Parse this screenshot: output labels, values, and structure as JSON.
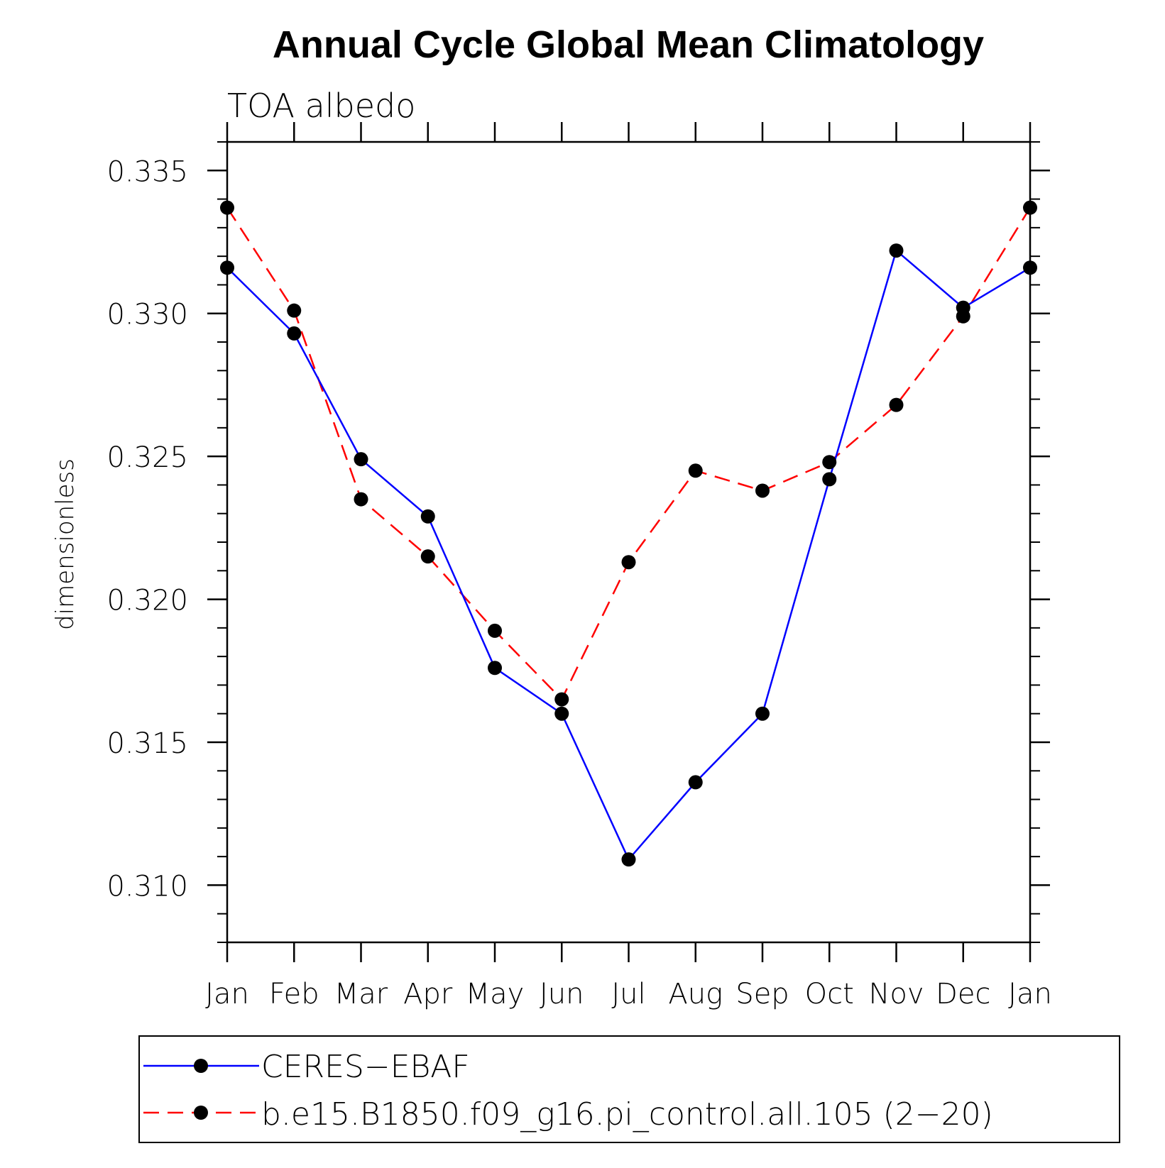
{
  "chart_data": {
    "type": "line",
    "title": "Annual Cycle Global Mean Climatology",
    "subtitle": "TOA albedo",
    "xlabel": "",
    "ylabel": "dimensionless",
    "categories": [
      "Jan",
      "Feb",
      "Mar",
      "Apr",
      "May",
      "Jun",
      "Jul",
      "Aug",
      "Sep",
      "Oct",
      "Nov",
      "Dec",
      "Jan"
    ],
    "ylim": [
      0.308,
      0.336
    ],
    "yticks": [
      0.31,
      0.315,
      0.32,
      0.325,
      0.33,
      0.335
    ],
    "ytick_labels": [
      "0.310",
      "0.315",
      "0.320",
      "0.325",
      "0.330",
      "0.335"
    ],
    "grid": false,
    "legend_position": "bottom",
    "series": [
      {
        "name": "CERES−EBAF",
        "color": "#0000ff",
        "style": "solid",
        "marker": "circle",
        "values": [
          0.3316,
          0.3293,
          0.3249,
          0.3229,
          0.3176,
          0.316,
          0.3109,
          0.3136,
          0.316,
          0.3242,
          0.3322,
          0.3302,
          0.3316
        ]
      },
      {
        "name": "b.e15.B1850.f09_g16.pi_control.all.105 (2−20)",
        "color": "#ff0000",
        "style": "dashed",
        "marker": "circle",
        "values": [
          0.3337,
          0.3301,
          0.3235,
          0.3215,
          0.3189,
          0.3165,
          0.3213,
          0.3245,
          0.3238,
          0.3248,
          0.3268,
          0.3299,
          0.3337
        ]
      }
    ]
  }
}
